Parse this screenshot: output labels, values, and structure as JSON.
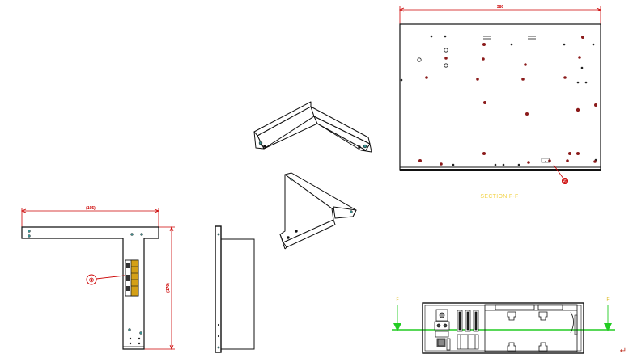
{
  "drawing": {
    "section_label": "SECTION F-F",
    "section_letter_left": "F",
    "section_letter_right": "F",
    "balloon_plate": "⑩",
    "balloon_tbracket": "⑨",
    "dim_plate_width": "380",
    "dim_tbracket_width": "(195)",
    "dim_tbracket_height": "(179)",
    "paragraph_mark": "↵",
    "colors": {
      "dimension": "#cc0000",
      "section_line": "#22cc22",
      "section_text": "#f2d34a",
      "hole": "#8b1a1a",
      "outline": "#111111",
      "connector": "#d4a017"
    }
  }
}
